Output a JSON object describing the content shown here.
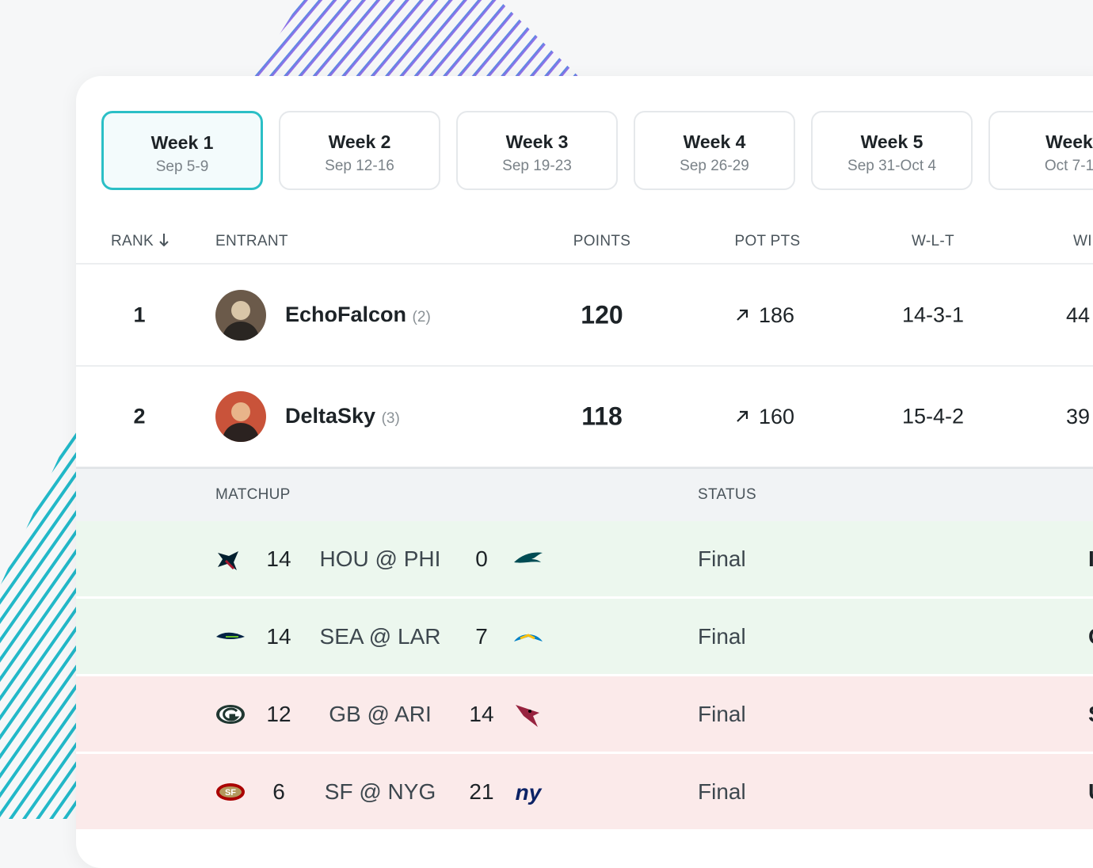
{
  "weeks": [
    {
      "label": "Week 1",
      "dates": "Sep 5-9"
    },
    {
      "label": "Week 2",
      "dates": "Sep 12-16"
    },
    {
      "label": "Week 3",
      "dates": "Sep 19-23"
    },
    {
      "label": "Week 4",
      "dates": "Sep 26-29"
    },
    {
      "label": "Week 5",
      "dates": "Sep 31-Oct 4"
    },
    {
      "label": "Week",
      "dates": "Oct 7-1"
    }
  ],
  "standings": {
    "headers": {
      "rank": "RANK",
      "entrant": "ENTRANT",
      "points": "POINTS",
      "pot_pts": "POT PTS",
      "wlt": "W-L-T",
      "last": "WI"
    },
    "rows": [
      {
        "rank": 1,
        "name": "EchoFalcon",
        "seed": "(2)",
        "points": 120,
        "pot_pts": 186,
        "wlt": "14-3-1",
        "last": "44"
      },
      {
        "rank": 2,
        "name": "DeltaSky",
        "seed": "(3)",
        "points": 118,
        "pot_pts": 160,
        "wlt": "15-4-2",
        "last": "39"
      }
    ]
  },
  "matchups": {
    "headers": {
      "matchup": "MATCHUP",
      "status": "STATUS"
    },
    "rows": [
      {
        "away_score": 14,
        "game": "HOU @ PHI",
        "home_score": 0,
        "status": "Final",
        "last": "I",
        "result": "win"
      },
      {
        "away_score": 14,
        "game": "SEA @ LAR",
        "home_score": 7,
        "status": "Final",
        "last": "C",
        "result": "win"
      },
      {
        "away_score": 12,
        "game": "GB @ ARI",
        "home_score": 14,
        "status": "Final",
        "last": "S",
        "result": "loss"
      },
      {
        "away_score": 6,
        "game": "SF @ NYG",
        "home_score": 21,
        "status": "Final",
        "last": "U",
        "result": "loss"
      }
    ]
  }
}
